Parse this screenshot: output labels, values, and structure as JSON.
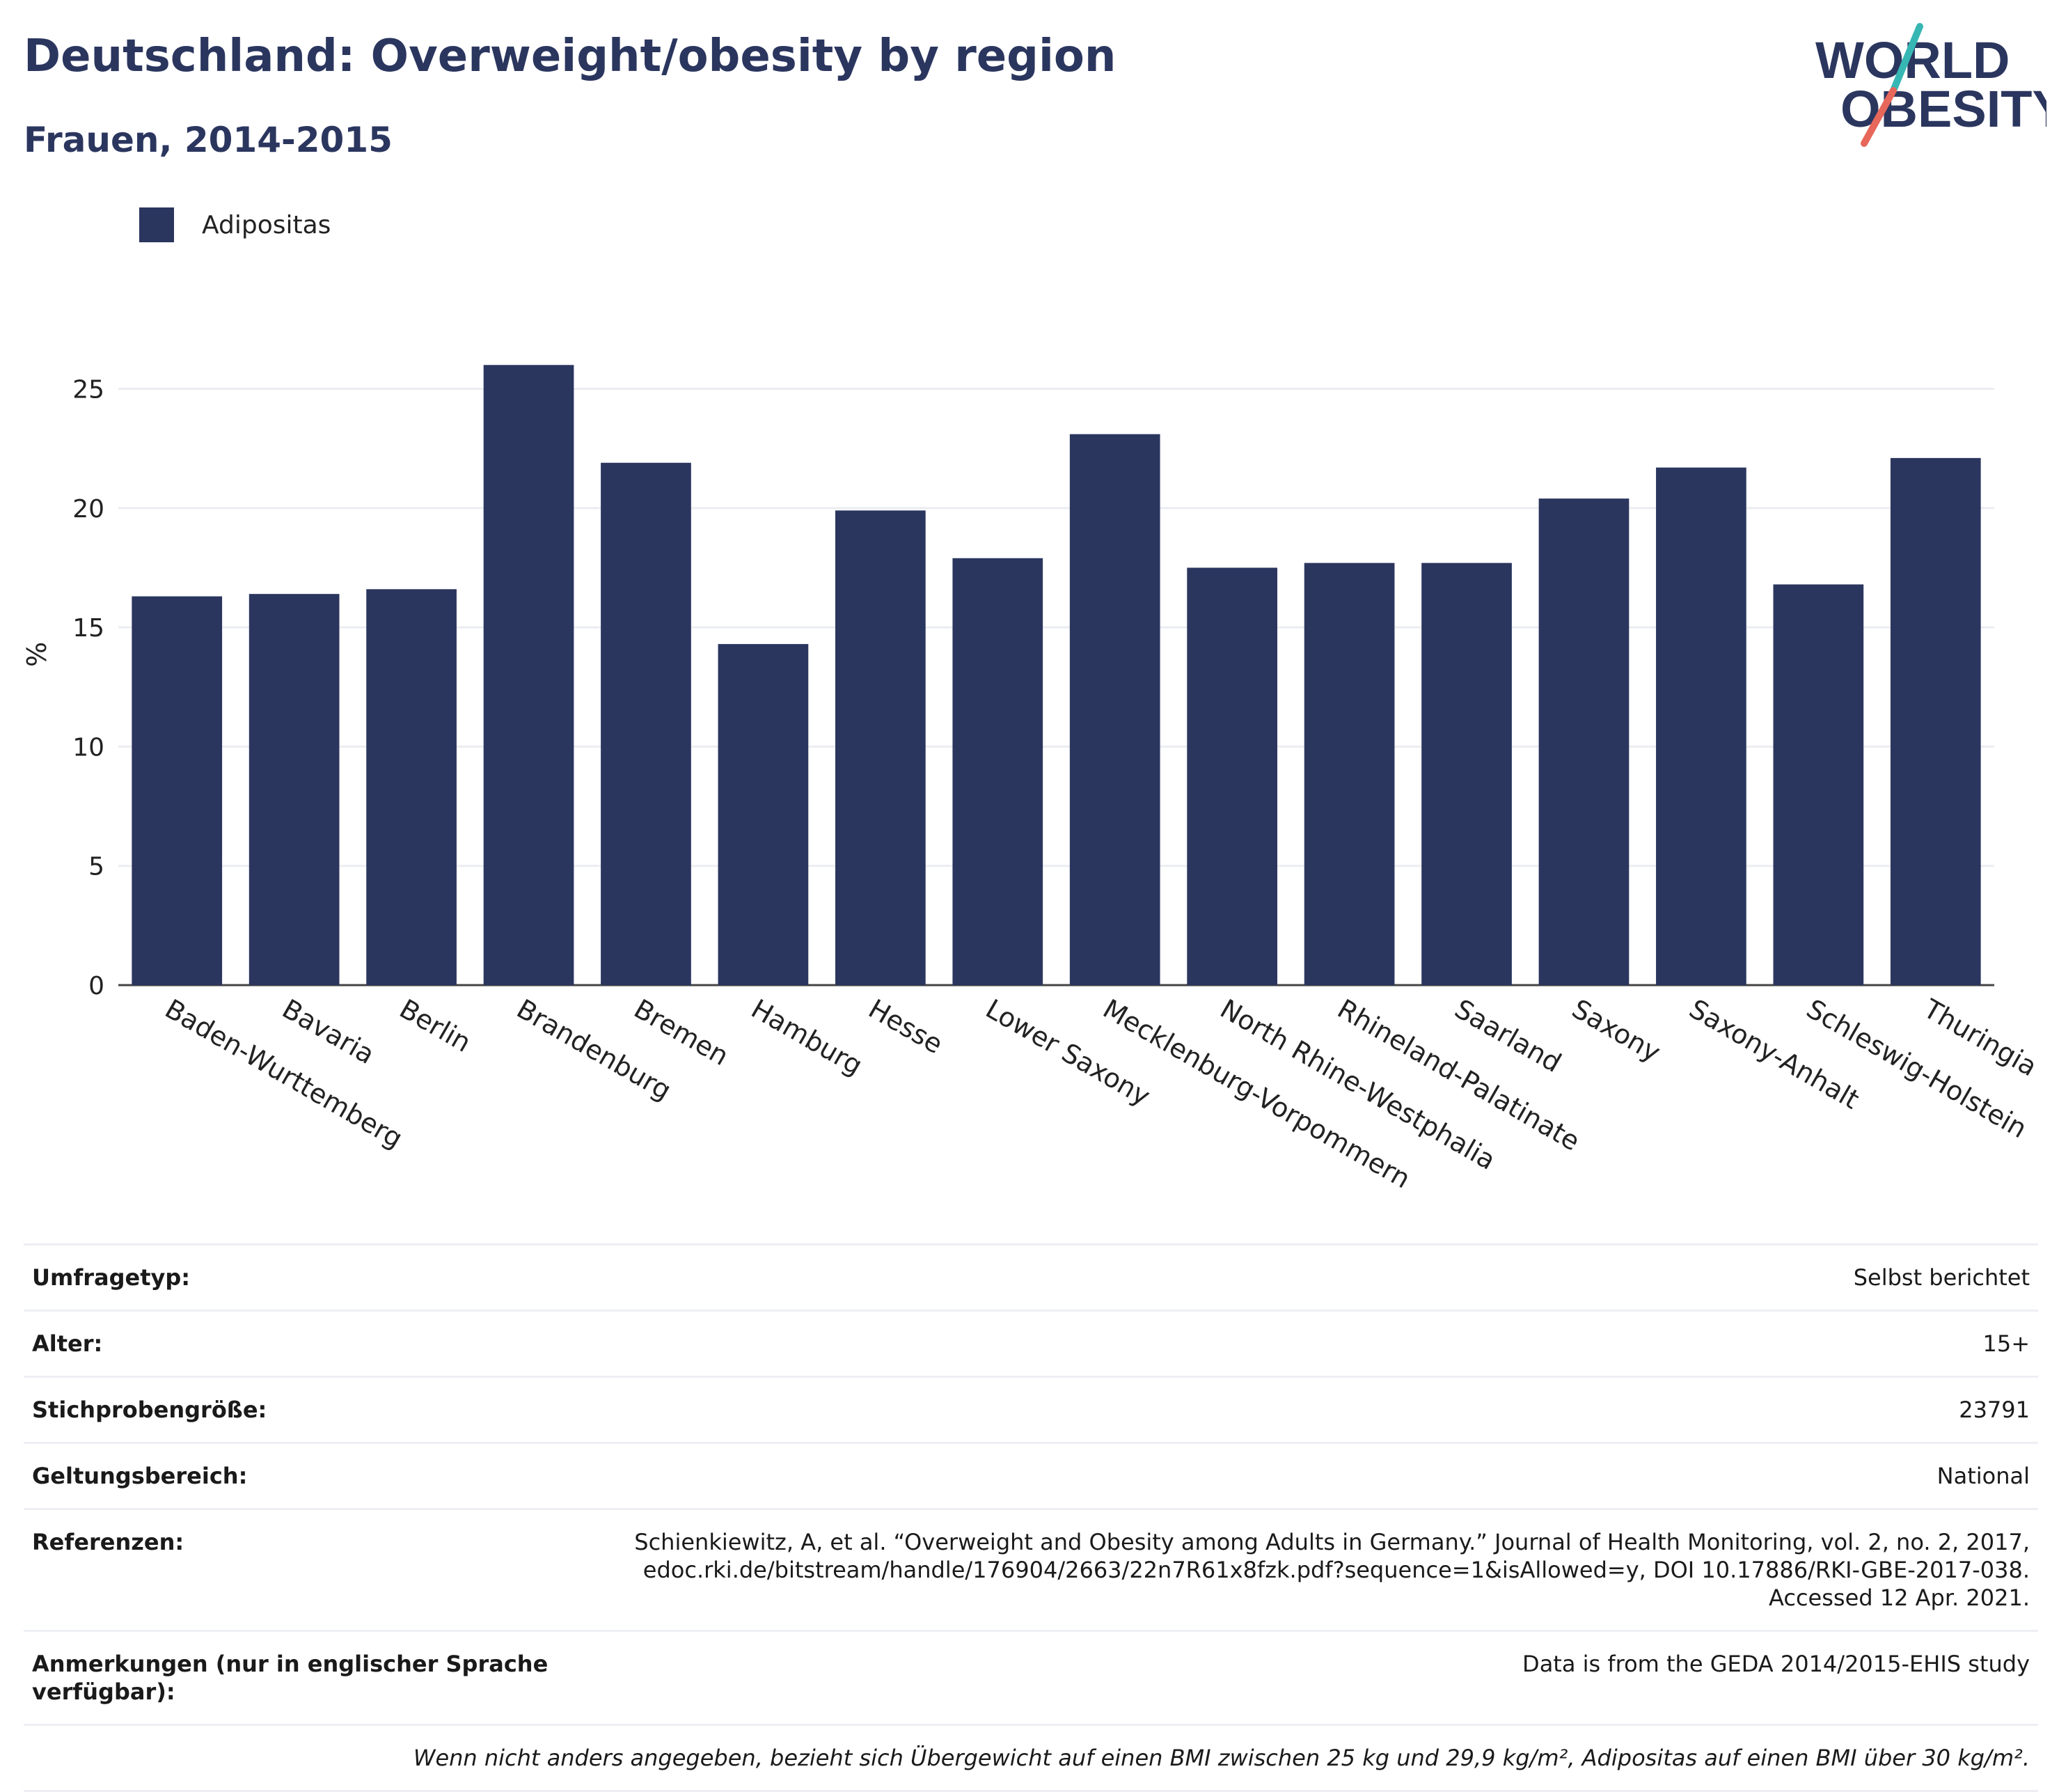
{
  "header": {
    "title": "Deutschland: Overweight/obesity by region",
    "subtitle": "Frauen, 2014-2015"
  },
  "logo": {
    "line1": "WORLD",
    "line2": "OBESITY",
    "icon": "world-obesity-logo"
  },
  "colors": {
    "bar": "#2b365f",
    "title": "#2b365f",
    "logo_slash_top": "#37b7b4",
    "logo_slash_bottom": "#e7675b"
  },
  "chart_data": {
    "type": "bar",
    "categories": [
      "Baden-Wurttemberg",
      "Bavaria",
      "Berlin",
      "Brandenburg",
      "Bremen",
      "Hamburg",
      "Hesse",
      "Lower Saxony",
      "Mecklenburg-Vorpommern",
      "North Rhine-Westphalia",
      "Rhineland-Palatinate",
      "Saarland",
      "Saxony",
      "Saxony-Anhalt",
      "Schleswig-Holstein",
      "Thuringia"
    ],
    "series": [
      {
        "name": "Adipositas",
        "values": [
          16.3,
          16.4,
          16.6,
          26.0,
          21.9,
          14.3,
          19.9,
          17.9,
          23.1,
          17.5,
          17.7,
          17.7,
          20.4,
          21.7,
          16.8,
          22.1
        ]
      }
    ],
    "ylabel": "%",
    "ylim": [
      0,
      27
    ],
    "yticks": [
      0,
      5,
      10,
      15,
      20,
      25
    ],
    "grid": true,
    "legend_position": "top-left"
  },
  "info": {
    "rows": [
      {
        "label": "Umfragetyp:",
        "value": "Selbst berichtet"
      },
      {
        "label": "Alter:",
        "value": "15+"
      },
      {
        "label": "Stichprobengröße:",
        "value": "23791"
      },
      {
        "label": "Geltungsbereich:",
        "value": "National"
      },
      {
        "label": "Referenzen:",
        "value_lines": [
          "Schienkiewitz, A, et al. “Overweight and Obesity among Adults in Germany.” Journal of Health Monitoring, vol. 2, no. 2, 2017,",
          "edoc.rki.de/bitstream/handle/176904/2663/22n7R61x8fzk.pdf?sequence=1&isAllowed=y, DOI 10.17886/RKI-GBE-2017-038.",
          "Accessed 12 Apr. 2021."
        ]
      },
      {
        "label": "Anmerkungen (nur in englischer Sprache verfügbar):",
        "value": "Data is from the GEDA 2014/2015-EHIS study"
      }
    ],
    "note": "Wenn nicht anders angegeben, bezieht sich Übergewicht auf einen BMI zwischen 25 kg und 29,9 kg/m², Adipositas auf einen BMI über 30 kg/m²."
  }
}
